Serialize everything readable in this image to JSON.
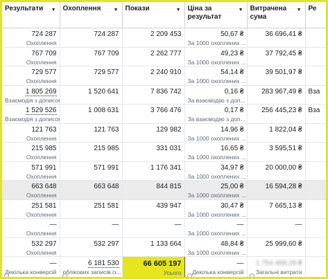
{
  "table": {
    "columns": [
      "Результати",
      "Охоплення",
      "Покази",
      "Ціна за результат",
      "Витрачена сума",
      "Ре"
    ],
    "rows": [
      [
        "724 287",
        "Охоплення",
        "724 287",
        "2 209 453",
        "50,67 ₴",
        "За 1000 охоплених ...",
        "36 696,41 ₴",
        null
      ],
      [
        "767 709",
        "Охоплення",
        "767 709",
        "2 262 777",
        "49,23 ₴",
        "За 1000 охоплених ...",
        "37 792,45 ₴",
        null
      ],
      [
        "729 577",
        "Охоплення",
        "729 577",
        "2 240 910",
        "54,14 ₴",
        "За 1000 охоплених ...",
        "39 501,97 ₴",
        null
      ],
      [
        "1 805 269",
        "Взаємодія з дописом",
        "1 520 641",
        "7 836 742",
        "0,16 ₴",
        "За взаємодію з доп...",
        "283 967,49 ₴",
        "Вза"
      ],
      [
        "1 529 526",
        "Взаємодія з дописом",
        "1 008 631",
        "3 766 476",
        "0,17 ₴",
        "За взаємодію з доп...",
        "256 445,23 ₴",
        "Вза"
      ],
      [
        "121 763",
        "Охоплення",
        "121 763",
        "129 982",
        "14,96 ₴",
        "За 1000 охоплених ...",
        "1 822,04 ₴",
        null
      ],
      [
        "215 985",
        "Охоплення",
        "215 985",
        "331 031",
        "16,65 ₴",
        "За 1000 охоплених ...",
        "3 595,51 ₴",
        null
      ],
      [
        "571 991",
        "Охоплення",
        "571 991",
        "1 176 341",
        "34,97 ₴",
        "За 1000 охоплених ...",
        "20 000,00 ₴",
        null
      ],
      [
        "663 648",
        "Охоплення",
        "663 648",
        "844 815",
        "25,00 ₴",
        "За 1000 охоплених ...",
        "16 594,28 ₴",
        null
      ],
      [
        "251 581",
        "Охоплення",
        "251 581",
        "439 947",
        "30,47 ₴",
        "За 1000 охоплених ...",
        "7 665,13 ₴",
        null
      ],
      [
        "—",
        "Охоплення",
        "—",
        "—",
        "—",
        "За 1000 охоплених ...",
        "—",
        null
      ],
      [
        "532 297",
        "Охоплення",
        "532 297",
        "1 133 664",
        "48,84 ₴",
        "За 1000 охоплених ...",
        "25 999,60 ₴",
        null
      ]
    ],
    "footer": [
      [
        "—",
        "Декілька конверсій"
      ],
      [
        "6 181 530",
        "облікових записів із..."
      ],
      [
        "66 605 197",
        "Усього"
      ],
      [
        "—",
        "Декілька конверсій"
      ],
      [
        "1 754 468,28 ₴",
        "Загальні витрати"
      ]
    ]
  }
}
